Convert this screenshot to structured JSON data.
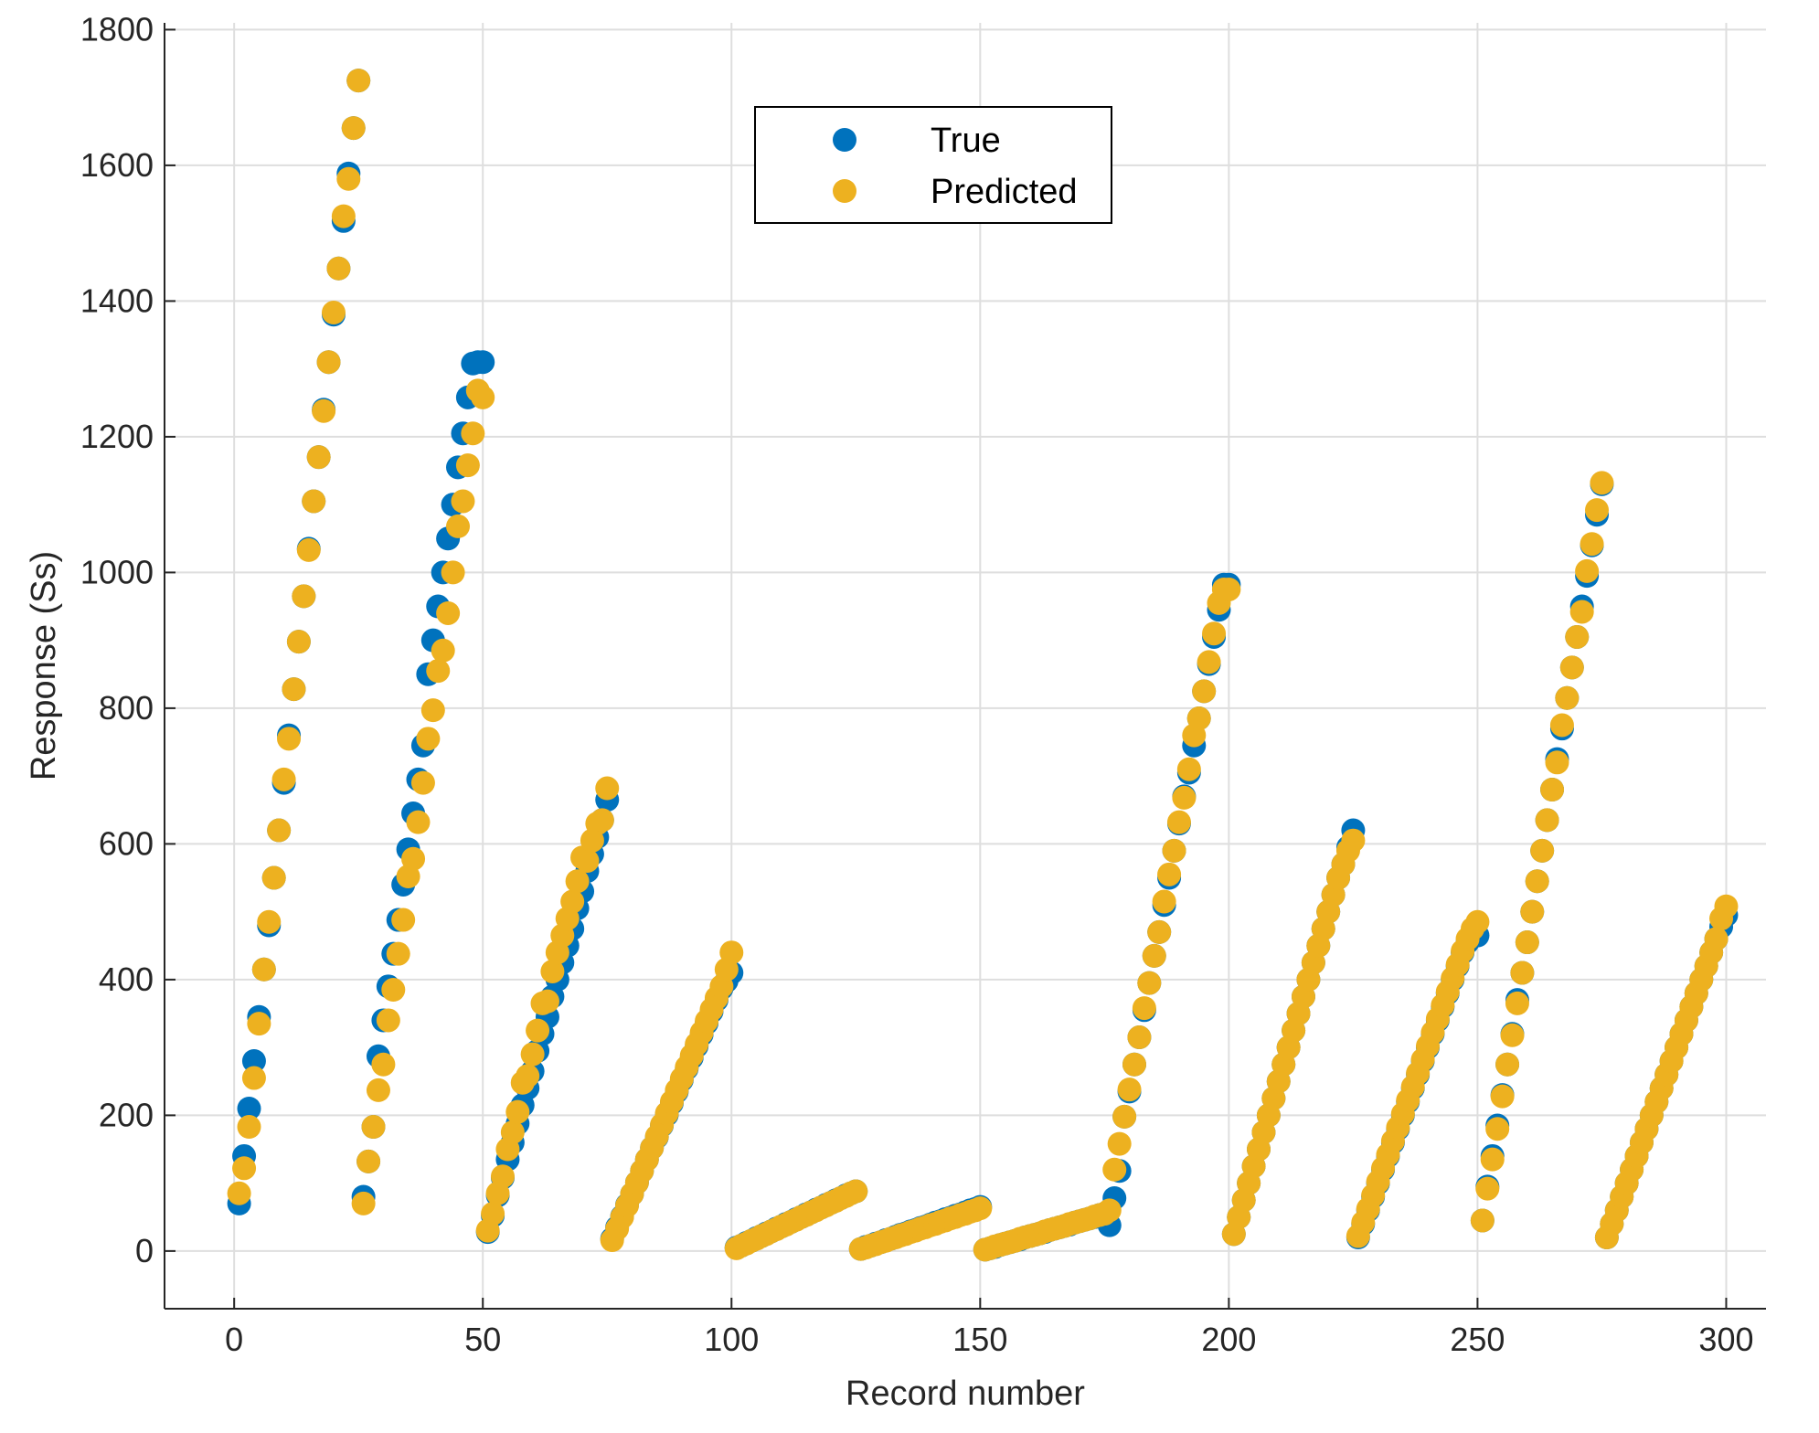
{
  "chart_data": {
    "type": "scatter",
    "title": "",
    "xlabel": "Record number",
    "ylabel": "Response (Ss)",
    "xlim": [
      -14,
      308
    ],
    "ylim": [
      -85,
      1810
    ],
    "xticks": [
      0,
      50,
      100,
      150,
      200,
      250,
      300
    ],
    "yticks": [
      0,
      200,
      400,
      600,
      800,
      1000,
      1200,
      1400,
      1600,
      1800
    ],
    "grid": true,
    "legend_position": "top-center",
    "colors": {
      "True": "#0072BD",
      "Predicted": "#EDB120"
    },
    "series": [
      {
        "name": "True",
        "segments": [
          {
            "x_start": 1,
            "x_end": 25,
            "values": [
              70,
              140,
              210,
              280,
              345,
              415,
              480,
              550,
              620,
              690,
              760,
              828,
              898,
              965,
              1035,
              1105,
              1170,
              1240,
              1310,
              1380,
              1448,
              1518,
              1588,
              1655,
              1725
            ]
          },
          {
            "x_start": 26,
            "x_end": 50,
            "values": [
              80,
              132,
              183,
              287,
              340,
              390,
              438,
              488,
              540,
              592,
              645,
              695,
              745,
              850,
              900,
              950,
              1000,
              1050,
              1100,
              1155,
              1205,
              1258,
              1308,
              1310,
              1310
            ]
          },
          {
            "x_start": 51,
            "x_end": 75,
            "values": [
              28,
              52,
              82,
              108,
              135,
              160,
              188,
              215,
              240,
              265,
              295,
              320,
              345,
              375,
              400,
              425,
              450,
              475,
              505,
              530,
              560,
              585,
              610,
              635,
              665
            ]
          },
          {
            "x_start": 76,
            "x_end": 100,
            "values": [
              18,
              35,
              51,
              68,
              84,
              101,
              118,
              135,
              152,
              168,
              185,
              201,
              218,
              235,
              252,
              269,
              285,
              302,
              319,
              336,
              353,
              370,
              387,
              398,
              410
            ]
          },
          {
            "x_start": 101,
            "x_end": 125,
            "values": [
              5,
              8,
              12,
              15,
              19,
              22,
              26,
              29,
              33,
              36,
              40,
              43,
              47,
              50,
              54,
              57,
              61,
              64,
              68,
              71,
              75,
              78,
              82,
              85,
              88
            ]
          },
          {
            "x_start": 126,
            "x_end": 150,
            "values": [
              3,
              6,
              8,
              11,
              13,
              16,
              18,
              21,
              24,
              26,
              29,
              31,
              34,
              36,
              39,
              42,
              44,
              47,
              49,
              52,
              54,
              57,
              60,
              62,
              65
            ]
          },
          {
            "x_start": 151,
            "x_end": 175,
            "values": [
              2,
              4,
              6,
              9,
              11,
              13,
              15,
              17,
              20,
              22,
              24,
              26,
              28,
              31,
              33,
              35,
              37,
              39,
              42,
              44,
              46,
              48,
              50,
              53,
              55
            ]
          },
          {
            "x_start": 176,
            "x_end": 200,
            "values": [
              38,
              78,
              118,
              198,
              235,
              275,
              315,
              355,
              395,
              435,
              470,
              510,
              550,
              590,
              630,
              670,
              705,
              745,
              785,
              825,
              865,
              905,
              945,
              982,
              982
            ]
          },
          {
            "x_start": 201,
            "x_end": 225,
            "values": [
              25,
              50,
              75,
              100,
              125,
              150,
              175,
              200,
              225,
              250,
              275,
              300,
              325,
              350,
              375,
              400,
              425,
              450,
              475,
              500,
              525,
              550,
              570,
              595,
              620
            ]
          },
          {
            "x_start": 226,
            "x_end": 250,
            "values": [
              20,
              40,
              60,
              80,
              100,
              120,
              140,
              160,
              180,
              200,
              220,
              240,
              260,
              280,
              300,
              320,
              340,
              360,
              380,
              400,
              420,
              440,
              455,
              465,
              465
            ]
          },
          {
            "x_start": 251,
            "x_end": 275,
            "values": [
              45,
              95,
              140,
              185,
              230,
              275,
              320,
              370,
              410,
              455,
              500,
              545,
              590,
              635,
              680,
              725,
              770,
              815,
              860,
              905,
              950,
              995,
              1040,
              1085,
              1130
            ]
          },
          {
            "x_start": 276,
            "x_end": 300,
            "values": [
              20,
              40,
              60,
              80,
              100,
              120,
              140,
              160,
              180,
              200,
              220,
              240,
              260,
              280,
              300,
              320,
              340,
              360,
              380,
              400,
              420,
              440,
              460,
              478,
              495
            ]
          }
        ]
      },
      {
        "name": "Predicted",
        "segments": [
          {
            "x_start": 1,
            "x_end": 25,
            "values": [
              85,
              122,
              183,
              255,
              335,
              415,
              485,
              550,
              620,
              695,
              755,
              828,
              898,
              965,
              1033,
              1105,
              1170,
              1238,
              1310,
              1383,
              1448,
              1525,
              1580,
              1655,
              1725
            ]
          },
          {
            "x_start": 26,
            "x_end": 50,
            "values": [
              70,
              132,
              183,
              237,
              275,
              340,
              385,
              438,
              488,
              552,
              578,
              632,
              690,
              755,
              797,
              855,
              885,
              940,
              1000,
              1068,
              1105,
              1158,
              1205,
              1268,
              1258
            ]
          },
          {
            "x_start": 51,
            "x_end": 75,
            "values": [
              30,
              55,
              85,
              110,
              150,
              175,
              205,
              248,
              258,
              290,
              325,
              365,
              368,
              412,
              440,
              465,
              490,
              515,
              545,
              580,
              575,
              605,
              630,
              635,
              682
            ]
          },
          {
            "x_start": 76,
            "x_end": 100,
            "values": [
              16,
              33,
              50,
              67,
              84,
              101,
              118,
              135,
              152,
              169,
              186,
              203,
              220,
              237,
              254,
              271,
              288,
              305,
              322,
              339,
              356,
              373,
              390,
              415,
              440
            ]
          },
          {
            "x_start": 101,
            "x_end": 125,
            "values": [
              4,
              8,
              11,
              15,
              18,
              22,
              25,
              29,
              32,
              36,
              39,
              43,
              46,
              50,
              53,
              57,
              60,
              64,
              67,
              71,
              74,
              78,
              81,
              85,
              88
            ]
          },
          {
            "x_start": 126,
            "x_end": 150,
            "values": [
              3,
              5,
              8,
              10,
              13,
              15,
              18,
              20,
              23,
              25,
              28,
              30,
              33,
              35,
              38,
              40,
              43,
              45,
              48,
              50,
              53,
              55,
              58,
              60,
              63
            ]
          },
          {
            "x_start": 151,
            "x_end": 175,
            "values": [
              2,
              4,
              7,
              9,
              11,
              13,
              15,
              18,
              20,
              22,
              24,
              26,
              29,
              31,
              33,
              35,
              37,
              40,
              42,
              44,
              46,
              48,
              51,
              53,
              55
            ]
          },
          {
            "x_start": 176,
            "x_end": 200,
            "values": [
              60,
              120,
              158,
              198,
              238,
              275,
              315,
              358,
              395,
              435,
              470,
              515,
              555,
              590,
              632,
              668,
              710,
              760,
              785,
              825,
              868,
              910,
              955,
              975,
              975
            ]
          },
          {
            "x_start": 201,
            "x_end": 225,
            "values": [
              25,
              50,
              75,
              100,
              125,
              150,
              175,
              200,
              225,
              250,
              275,
              300,
              325,
              350,
              375,
              400,
              425,
              450,
              475,
              500,
              525,
              550,
              570,
              590,
              605
            ]
          },
          {
            "x_start": 226,
            "x_end": 250,
            "values": [
              22,
              42,
              62,
              82,
              102,
              122,
              142,
              162,
              182,
              202,
              222,
              242,
              262,
              282,
              302,
              322,
              342,
              362,
              382,
              402,
              422,
              442,
              460,
              475,
              485
            ]
          },
          {
            "x_start": 251,
            "x_end": 275,
            "values": [
              45,
              92,
              135,
              180,
              228,
              275,
              318,
              365,
              410,
              455,
              500,
              545,
              590,
              635,
              680,
              720,
              775,
              815,
              860,
              905,
              942,
              1002,
              1042,
              1092,
              1132
            ]
          },
          {
            "x_start": 276,
            "x_end": 300,
            "values": [
              20,
              40,
              60,
              80,
              100,
              120,
              140,
              160,
              180,
              200,
              220,
              240,
              260,
              280,
              300,
              320,
              340,
              360,
              380,
              400,
              420,
              440,
              460,
              490,
              508
            ]
          }
        ]
      }
    ]
  }
}
